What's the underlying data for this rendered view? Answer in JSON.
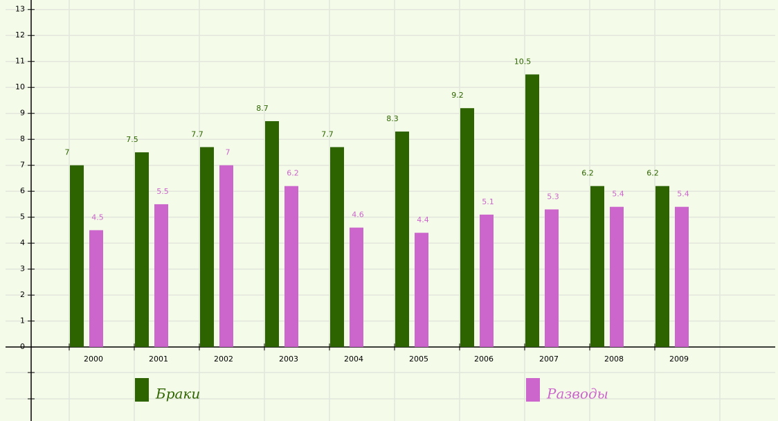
{
  "chart_data": {
    "type": "bar",
    "categories": [
      "2000",
      "2001",
      "2002",
      "2003",
      "2004",
      "2005",
      "2006",
      "2007",
      "2008",
      "2009"
    ],
    "series": [
      {
        "name": "Браки",
        "color": "#2d6400",
        "values": [
          7,
          7.5,
          7.7,
          8.7,
          7.7,
          8.3,
          9.2,
          10.5,
          6.2,
          6.2
        ]
      },
      {
        "name": "Разводы",
        "color": "#cc66cc",
        "values": [
          4.5,
          5.5,
          7,
          6.2,
          4.6,
          4.4,
          5.1,
          5.3,
          5.4,
          5.4
        ]
      }
    ],
    "ylim": [
      -2.85,
      13.1
    ],
    "yticks": [
      0,
      1,
      2,
      3,
      4,
      5,
      6,
      7,
      8,
      9,
      10,
      11,
      12,
      13
    ],
    "grid": true
  }
}
